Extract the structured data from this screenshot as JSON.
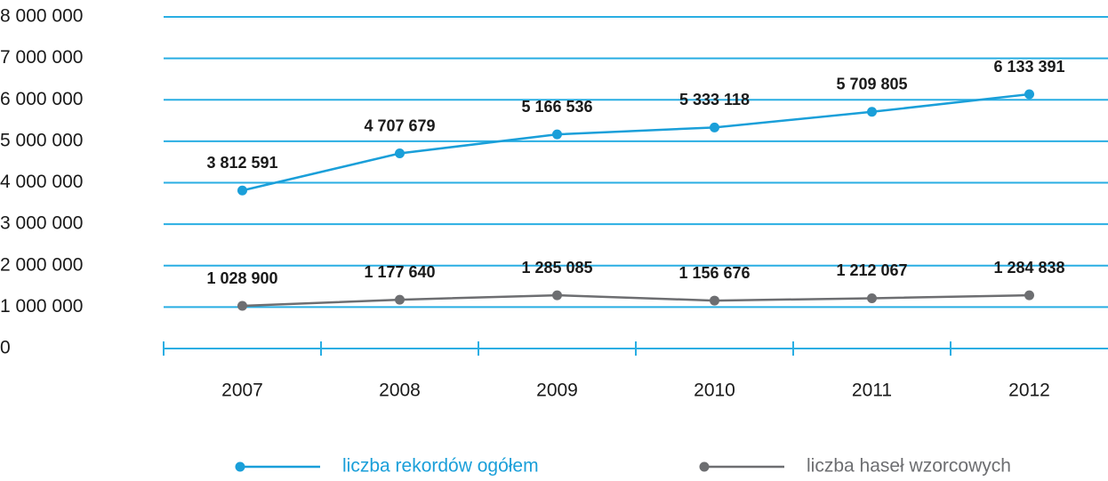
{
  "chart_data": {
    "type": "line",
    "categories": [
      "2007",
      "2008",
      "2009",
      "2010",
      "2011",
      "2012"
    ],
    "series": [
      {
        "name": "liczba rekordów ogółem",
        "color": "#1a9fd9",
        "values": [
          3812591,
          4707679,
          5166536,
          5333118,
          5709805,
          6133391
        ],
        "value_labels": [
          "3 812 591",
          "4 707 679",
          "5 166 536",
          "5 333 118",
          "5 709 805",
          "6 133 391"
        ]
      },
      {
        "name": "liczba haseł wzorcowych",
        "color": "#6d6e71",
        "values": [
          1028900,
          1177640,
          1285085,
          1156676,
          1212067,
          1284838
        ],
        "value_labels": [
          "1 028 900",
          "1 177 640",
          "1 285 085",
          "1 156 676",
          "1 212 067",
          "1 284 838"
        ]
      }
    ],
    "ylim": [
      0,
      8000000
    ],
    "yticks": [
      0,
      {
        "value": 1000000,
        "label": "1 000 000"
      },
      {
        "value": 2000000,
        "label": "2 000 000"
      },
      {
        "value": 3000000,
        "label": "3 000 000"
      },
      {
        "value": 4000000,
        "label": "4 000 000"
      },
      {
        "value": 5000000,
        "label": "5 000 000"
      },
      {
        "value": 6000000,
        "label": "6 000 000"
      },
      {
        "value": 7000000,
        "label": "7 000 000"
      },
      {
        "value": 8000000,
        "label": "8 000 000"
      }
    ],
    "grid": true,
    "grid_color": "#29aee3",
    "legend": "bottom"
  }
}
